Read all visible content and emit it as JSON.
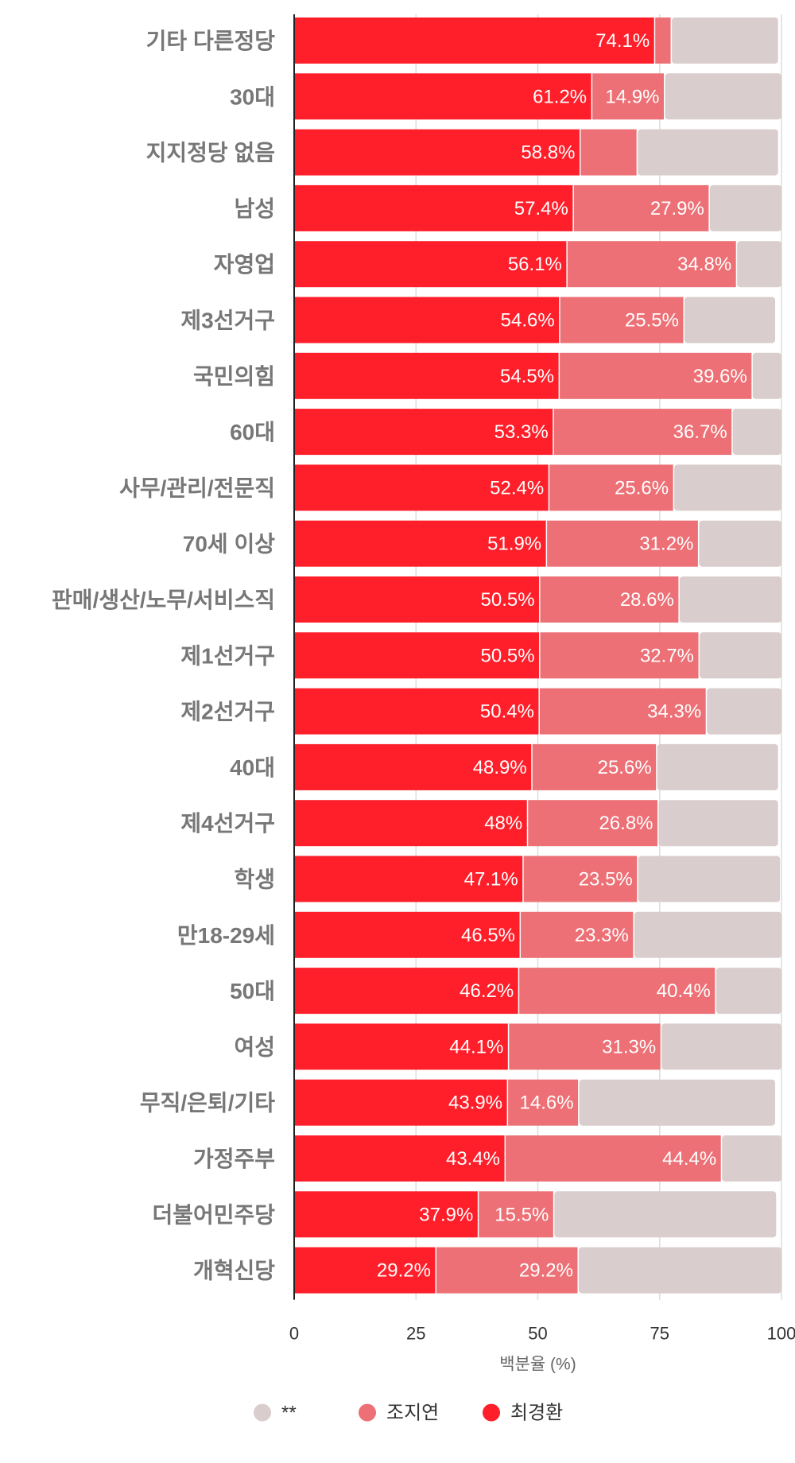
{
  "chart_data": {
    "type": "bar",
    "orientation": "horizontal",
    "stacked": true,
    "categories": [
      "기타 다른정당",
      "30대",
      "지지정당 없음",
      "남성",
      "자영업",
      "제3선거구",
      "국민의힘",
      "60대",
      "사무/관리/전문직",
      "70세 이상",
      "판매/생산/노무/서비스직",
      "제1선거구",
      "제2선거구",
      "40대",
      "제4선거구",
      "학생",
      "만18-29세",
      "50대",
      "여성",
      "무직/은퇴/기타",
      "가정주부",
      "더불어민주당",
      "개혁신당"
    ],
    "series": [
      {
        "name": "최경환",
        "color": "#ff1f2a",
        "values": [
          74.1,
          61.2,
          58.8,
          57.4,
          56.1,
          54.6,
          54.5,
          53.3,
          52.4,
          51.9,
          50.5,
          50.5,
          50.4,
          48.9,
          48,
          47.1,
          46.5,
          46.2,
          44.1,
          43.9,
          43.4,
          37.9,
          29.2
        ],
        "labels": [
          "74.1%",
          "61.2%",
          "58.8%",
          "57.4%",
          "56.1%",
          "54.6%",
          "54.5%",
          "53.3%",
          "52.4%",
          "51.9%",
          "50.5%",
          "50.5%",
          "50.4%",
          "48.9%",
          "48%",
          "47.1%",
          "46.5%",
          "46.2%",
          "44.1%",
          "43.9%",
          "43.4%",
          "37.9%",
          "29.2%"
        ]
      },
      {
        "name": "조지연",
        "color": "#ec7075",
        "values": [
          3.4,
          14.9,
          11.7,
          27.9,
          34.8,
          25.5,
          39.6,
          36.7,
          25.6,
          31.2,
          28.6,
          32.7,
          34.3,
          25.6,
          26.8,
          23.5,
          23.3,
          40.4,
          31.3,
          14.6,
          44.4,
          15.5,
          29.2
        ],
        "labels": [
          "",
          "14.9%",
          "",
          "27.9%",
          "34.8%",
          "25.5%",
          "39.6%",
          "36.7%",
          "25.6%",
          "31.2%",
          "28.6%",
          "32.7%",
          "34.3%",
          "25.6%",
          "26.8%",
          "23.5%",
          "23.3%",
          "40.4%",
          "31.3%",
          "14.6%",
          "44.4%",
          "15.5%",
          "29.2%"
        ]
      },
      {
        "name": "**",
        "color": "#d9cecd",
        "values": [
          21.8,
          23.9,
          28.8,
          14.7,
          9.1,
          18.6,
          5.9,
          10.0,
          22.0,
          16.9,
          20.9,
          16.8,
          15.3,
          24.8,
          24.5,
          29.1,
          30.2,
          13.4,
          24.6,
          40.2,
          12.2,
          45.5,
          41.6
        ],
        "labels": []
      }
    ],
    "legend_order": [
      "**",
      "조지연",
      "최경환"
    ],
    "legend_position": "bottom",
    "xlabel": "백분율 (%)",
    "xlim": [
      0,
      100
    ],
    "xticks": [
      "0",
      "25",
      "50",
      "75",
      "100"
    ],
    "grid": true
  }
}
